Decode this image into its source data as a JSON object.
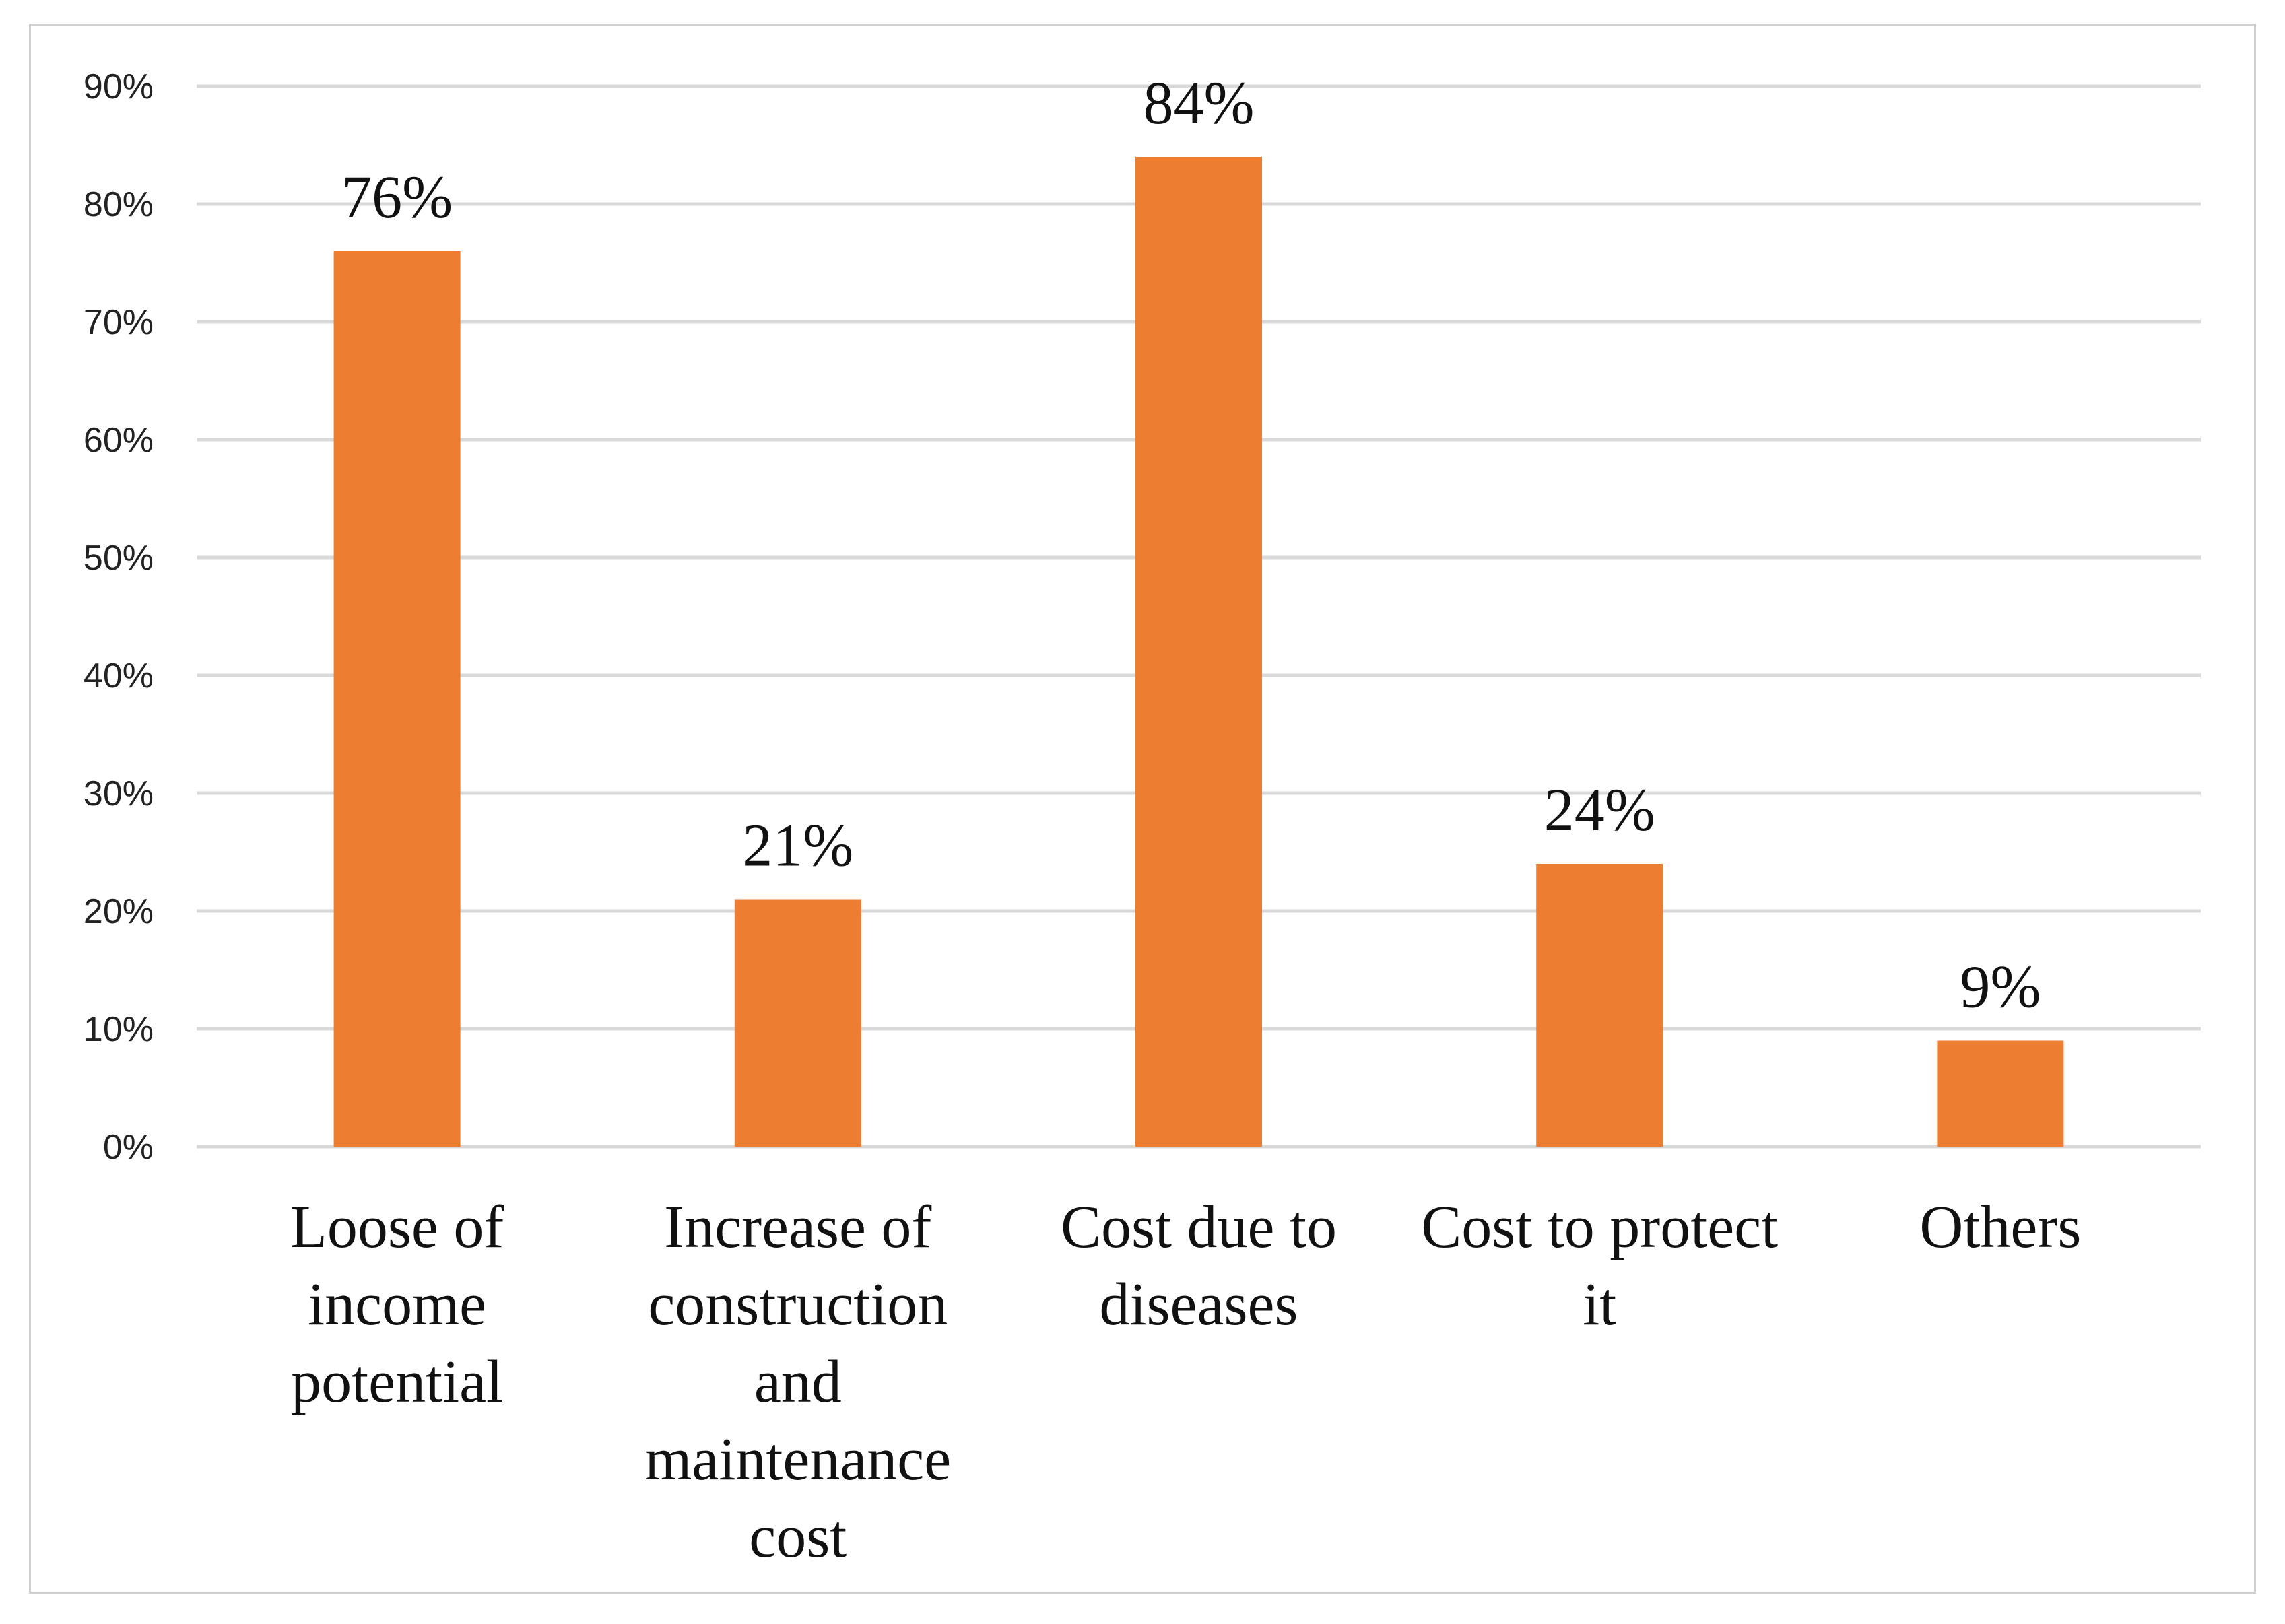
{
  "chart_data": {
    "type": "bar",
    "title": "",
    "xlabel": "",
    "ylabel": "",
    "categories": [
      "Loose of income potential",
      "Increase of construction and maintenance cost",
      "Cost due to diseases",
      "Cost to protect it",
      "Others"
    ],
    "category_lines": [
      [
        "Loose of",
        "income",
        "potential"
      ],
      [
        "Increase of",
        "construction",
        "and",
        "maintenance",
        "cost"
      ],
      [
        "Cost due to",
        "diseases"
      ],
      [
        "Cost to protect",
        "it"
      ],
      [
        "Others"
      ]
    ],
    "values": [
      76,
      21,
      84,
      24,
      9
    ],
    "data_labels": [
      "76%",
      "21%",
      "84%",
      "24%",
      "9%"
    ],
    "ylim": [
      0,
      90
    ],
    "yticks": [
      0,
      10,
      20,
      30,
      40,
      50,
      60,
      70,
      80,
      90
    ],
    "ytick_labels": [
      "0%",
      "10%",
      "20%",
      "30%",
      "40%",
      "50%",
      "60%",
      "70%",
      "80%",
      "90%"
    ],
    "grid": true,
    "legend": "none",
    "bar_color": "#ED7D31",
    "grid_color": "#D9D9D9"
  }
}
